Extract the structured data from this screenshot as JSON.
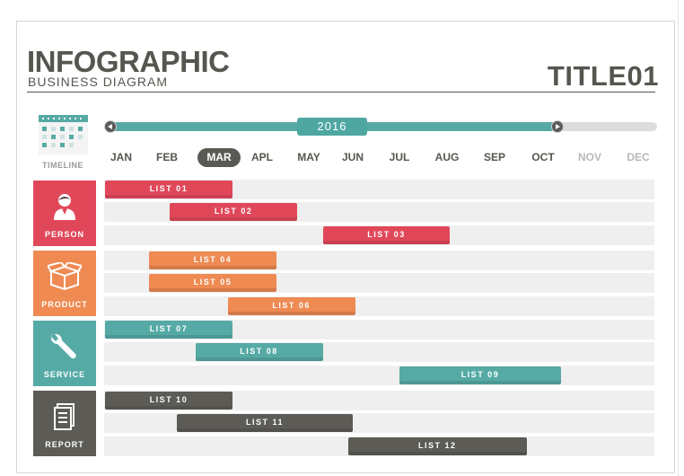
{
  "header": {
    "title": "INFOGRAPHIC",
    "subtitle": "BUSINESS DIAGRAM",
    "title_right": "TITLE01"
  },
  "timeline": {
    "label": "TIMELINE",
    "year": "2016",
    "months": [
      "JAN",
      "FEB",
      "MAR",
      "APL",
      "MAY",
      "JUN",
      "JUL",
      "AUG",
      "SEP",
      "OCT",
      "NOV",
      "DEC"
    ],
    "active_month": "MAR",
    "last_enabled_month": "OCT"
  },
  "categories": [
    {
      "label": "PERSON",
      "icon": "person-icon",
      "color": "#e0485a"
    },
    {
      "label": "PRODUCT",
      "icon": "box-icon",
      "color": "#ee8a52"
    },
    {
      "label": "SERVICE",
      "icon": "wrench-icon",
      "color": "#56aaa5"
    },
    {
      "label": "REPORT",
      "icon": "document-icon",
      "color": "#5c5b55"
    }
  ],
  "tasks": [
    {
      "label": "LIST 01",
      "category": "PERSON",
      "start": 0,
      "end": 2.75
    },
    {
      "label": "LIST 02",
      "category": "PERSON",
      "start": 1.4,
      "end": 4.15
    },
    {
      "label": "LIST 03",
      "category": "PERSON",
      "start": 4.7,
      "end": 7.45
    },
    {
      "label": "LIST 04",
      "category": "PRODUCT",
      "start": 0.95,
      "end": 3.7
    },
    {
      "label": "LIST 05",
      "category": "PRODUCT",
      "start": 0.95,
      "end": 3.7
    },
    {
      "label": "LIST 06",
      "category": "PRODUCT",
      "start": 2.65,
      "end": 5.4
    },
    {
      "label": "LIST 07",
      "category": "SERVICE",
      "start": 0,
      "end": 2.75
    },
    {
      "label": "LIST 08",
      "category": "SERVICE",
      "start": 1.95,
      "end": 4.7
    },
    {
      "label": "LIST 09",
      "category": "SERVICE",
      "start": 6.35,
      "end": 9.85
    },
    {
      "label": "LIST 10",
      "category": "REPORT",
      "start": 0,
      "end": 2.75
    },
    {
      "label": "LIST 11",
      "category": "REPORT",
      "start": 1.55,
      "end": 5.35
    },
    {
      "label": "LIST 12",
      "category": "REPORT",
      "start": 5.25,
      "end": 9.1
    }
  ]
}
